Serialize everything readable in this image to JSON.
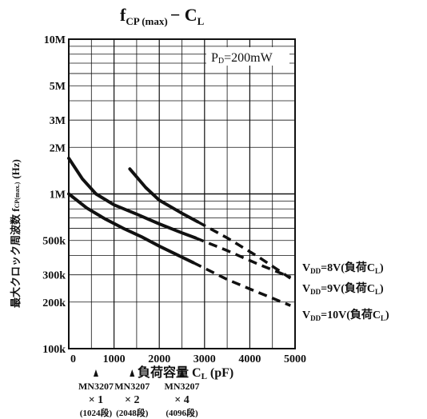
{
  "chart_data": {
    "type": "line",
    "title": "f",
    "title_sub": "CP (max)",
    "title_rest": "− C",
    "title_rest_sub": "L",
    "ylabel": "最大クロック周波数 f",
    "ylabel_sub": "CP(max.)",
    "ylabel_unit": "(Hz)",
    "xlabel": "負荷容量 C",
    "xlabel_sub": "L",
    "xlabel_unit": "(pF)",
    "x_scale": "linear",
    "y_scale": "log",
    "xlim": [
      0,
      5000
    ],
    "ylim": [
      100000,
      10000000
    ],
    "grid": true,
    "x_ticks": [
      {
        "value": 0,
        "label": "0"
      },
      {
        "value": 1000,
        "label": "1000"
      },
      {
        "value": 2000,
        "label": "2000"
      },
      {
        "value": 3000,
        "label": "3000"
      },
      {
        "value": 4000,
        "label": "4000"
      },
      {
        "value": 5000,
        "label": "5000"
      }
    ],
    "y_ticks": [
      {
        "value": 100000,
        "label": "100k"
      },
      {
        "value": 200000,
        "label": "200k"
      },
      {
        "value": 300000,
        "label": "300k"
      },
      {
        "value": 500000,
        "label": "500k"
      },
      {
        "value": 1000000,
        "label": "1M"
      },
      {
        "value": 2000000,
        "label": "2M"
      },
      {
        "value": 3000000,
        "label": "3M"
      },
      {
        "value": 5000000,
        "label": "5M"
      },
      {
        "value": 10000000,
        "label": "10M"
      }
    ],
    "annotation": {
      "label": "P",
      "sub": "D",
      "rest": "=200mW"
    },
    "series": [
      {
        "name": "V_DD=8V(負荷C_L)",
        "label_main": "V",
        "label_sub": "DD",
        "label_rest": "=8V(負荷C",
        "label_rest_sub": "L",
        "label_end": ")",
        "solid": [
          [
            0,
            1700000
          ],
          [
            300,
            1250000
          ],
          [
            600,
            1000000
          ],
          [
            1000,
            850000
          ],
          [
            1500,
            740000
          ],
          [
            2000,
            640000
          ],
          [
            2500,
            560000
          ],
          [
            2800,
            520000
          ]
        ],
        "dashed": [
          [
            2800,
            520000
          ],
          [
            3500,
            430000
          ],
          [
            4200,
            350000
          ],
          [
            4900,
            290000
          ]
        ]
      },
      {
        "name": "V_DD=9V(負荷C_L)",
        "label_main": "V",
        "label_sub": "DD",
        "label_rest": "=9V(負荷C",
        "label_rest_sub": "L",
        "label_end": ")",
        "solid": [
          [
            1350,
            1450000
          ],
          [
            1700,
            1100000
          ],
          [
            2000,
            910000
          ],
          [
            2500,
            750000
          ],
          [
            2850,
            660000
          ]
        ],
        "dashed": [
          [
            2850,
            660000
          ],
          [
            3500,
            520000
          ],
          [
            4200,
            390000
          ],
          [
            4900,
            285000
          ]
        ]
      },
      {
        "name": "V_DD=10V(負荷C_L)",
        "label_main": "V",
        "label_sub": "DD",
        "label_rest": "=10V(負荷C",
        "label_rest_sub": "L",
        "label_end": ")",
        "solid": [
          [
            0,
            1000000
          ],
          [
            400,
            810000
          ],
          [
            800,
            690000
          ],
          [
            1200,
            600000
          ],
          [
            1600,
            530000
          ],
          [
            2000,
            460000
          ],
          [
            2500,
            390000
          ],
          [
            2750,
            360000
          ]
        ],
        "dashed": [
          [
            2750,
            360000
          ],
          [
            3500,
            280000
          ],
          [
            4200,
            230000
          ],
          [
            4900,
            190000
          ]
        ]
      }
    ],
    "markers": [
      {
        "x": 600,
        "line1": "MN3207",
        "line2": "× 1",
        "line3": "(1024段)"
      },
      {
        "x": 1400,
        "line1": "MN3207",
        "line2": "× 2",
        "line3": "(2048段)"
      },
      {
        "x": 2500,
        "line1": "MN3207",
        "line2": "× 4",
        "line3": "(4096段)"
      }
    ]
  }
}
